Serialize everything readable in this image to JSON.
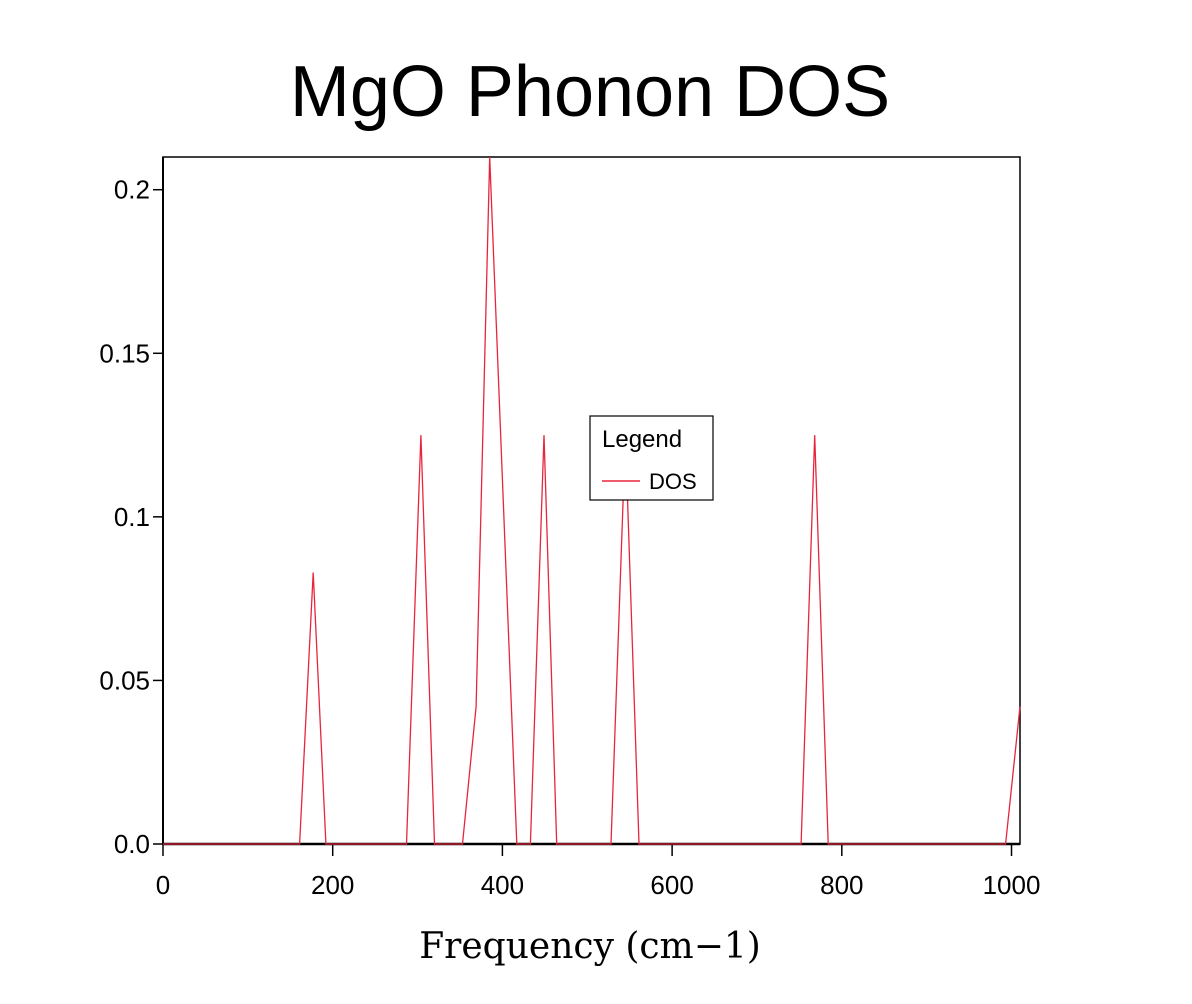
{
  "chart_data": {
    "type": "line",
    "title": "MgO Phonon DOS",
    "xlabel": "Frequency (cm−1)",
    "ylabel": "",
    "xlim": [
      0,
      1010
    ],
    "ylim": [
      0,
      0.21
    ],
    "xticks": [
      0,
      200,
      400,
      600,
      800,
      1000
    ],
    "xtick_labels": [
      "0",
      "200",
      "400",
      "600",
      "800",
      "1000"
    ],
    "yticks": [
      0.0,
      0.05,
      0.1,
      0.15,
      0.2
    ],
    "ytick_labels": [
      "0.0",
      "0.05",
      "0.1",
      "0.15",
      "0.2"
    ],
    "grid": false,
    "legend": {
      "title": "Legend",
      "placement": "center",
      "entries": [
        "DOS"
      ]
    },
    "series": [
      {
        "name": "DOS",
        "color": "#e8253c",
        "x": [
          0,
          161,
          177,
          192,
          287,
          304,
          320,
          353,
          369,
          385,
          417,
          433,
          449,
          464,
          528,
          545,
          561,
          752,
          768,
          784,
          993,
          1010
        ],
        "y": [
          0,
          0,
          0.083,
          0,
          0,
          0.125,
          0,
          0,
          0.042,
          0.21,
          0,
          0,
          0.125,
          0,
          0,
          0.125,
          0,
          0,
          0.125,
          0,
          0,
          0.042
        ]
      }
    ]
  }
}
